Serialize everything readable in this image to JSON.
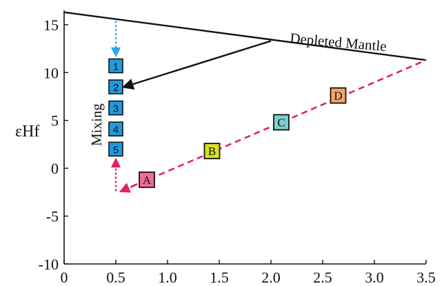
{
  "chart_data": {
    "type": "scatter",
    "xlim": [
      0,
      3.5
    ],
    "ylim": [
      -10,
      16.5
    ],
    "x_ticks": [
      "0",
      "0.5",
      "1.0",
      "1.5",
      "2.0",
      "2.5",
      "3.0",
      "3.5"
    ],
    "x_tick_values": [
      0,
      0.5,
      1.0,
      1.5,
      2.0,
      2.5,
      3.0,
      3.5
    ],
    "y_ticks": [
      "15",
      "10",
      "5",
      "0",
      "-5",
      "-10"
    ],
    "y_tick_values": [
      15,
      10,
      5,
      0,
      -5,
      -10
    ],
    "ylabel": "εHf",
    "xlabel": "",
    "depleted_mantle": {
      "label": "Depleted Mantle",
      "color": "#111111",
      "x": [
        0,
        3.5
      ],
      "y": [
        16.3,
        11.3
      ]
    },
    "evolution_line": {
      "color": "#e0206a",
      "x": [
        0.55,
        3.5
      ],
      "y": [
        -2.4,
        11.3
      ]
    },
    "samples": [
      {
        "name": "A",
        "x": 0.8,
        "y": -1.2,
        "color": "#f06a9a"
      },
      {
        "name": "B",
        "x": 1.43,
        "y": 1.8,
        "color": "#d8e020"
      },
      {
        "name": "C",
        "x": 2.1,
        "y": 4.8,
        "color": "#7ccfcf"
      },
      {
        "name": "D",
        "x": 2.65,
        "y": 7.6,
        "color": "#f5a46a"
      }
    ],
    "mixing": {
      "label": "Mixing",
      "color": "#1e9be0",
      "boxes": [
        {
          "name": "1",
          "x": 0.5,
          "y": 10.7
        },
        {
          "name": "2",
          "x": 0.5,
          "y": 8.5
        },
        {
          "name": "3",
          "x": 0.5,
          "y": 6.3
        },
        {
          "name": "4",
          "x": 0.5,
          "y": 4.1
        },
        {
          "name": "5",
          "x": 0.5,
          "y": 2.0
        }
      ]
    },
    "arrows": [
      {
        "name": "dm-to-mixing-arrow",
        "style": "solid",
        "color": "#111111",
        "from": [
          2.0,
          13.3
        ],
        "to": [
          0.58,
          8.5
        ]
      },
      {
        "name": "dm-to-box1-arrow",
        "style": "dotted",
        "color": "#2aaae8",
        "from": [
          0.5,
          15.4
        ],
        "to": [
          0.5,
          11.8
        ]
      },
      {
        "name": "upward-to-box5-arrow",
        "style": "dotted",
        "color": "#e0206a",
        "from": [
          0.5,
          -2.4
        ],
        "to": [
          0.5,
          0.9
        ]
      },
      {
        "name": "evolution-arrowhead",
        "style": "dashed",
        "color": "#e0206a",
        "from": [
          0.8,
          -1.2
        ],
        "to": [
          0.55,
          -2.4
        ]
      }
    ]
  }
}
